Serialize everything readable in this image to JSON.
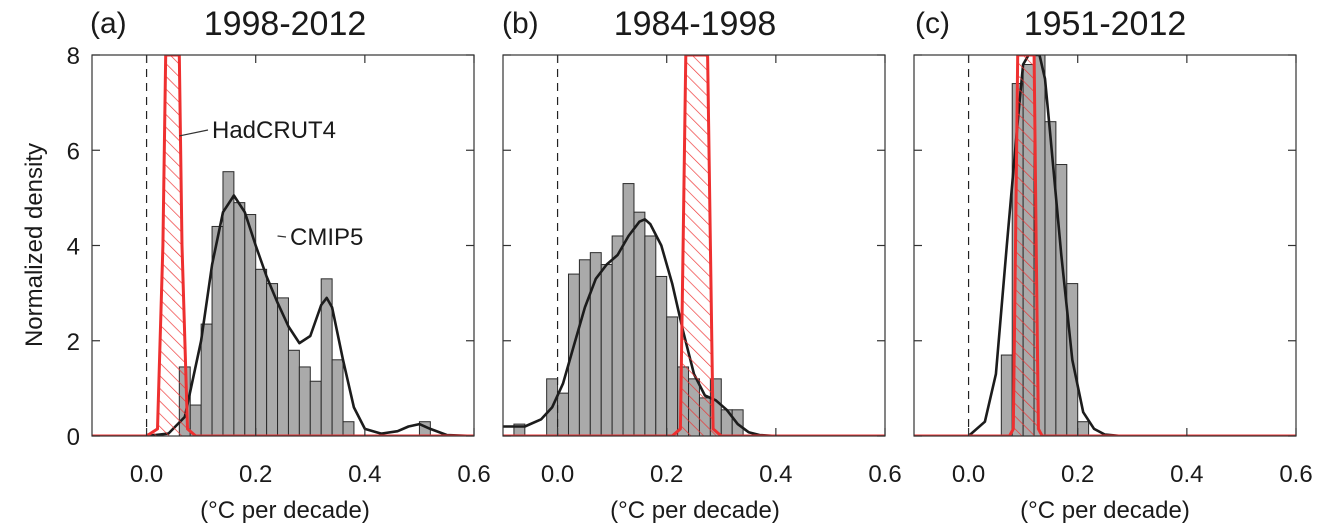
{
  "figure": {
    "ylabel": "Normalized density",
    "accent_colors": {
      "observations": "#ee3030",
      "model_curve": "#1c1c1c",
      "histogram_fill": "#aaaaaa",
      "zero_line": "#222222"
    }
  },
  "chart_data": [
    {
      "type": "bar",
      "panel_letter": "(a)",
      "title": "1998-2012",
      "xlabel": "(°C per decade)",
      "ylabel": "Normalized density",
      "xlim": [
        -0.1,
        0.6
      ],
      "ylim": [
        0,
        8
      ],
      "xticks": [
        "0.0",
        "0.2",
        "0.4",
        "0.6"
      ],
      "yticks": [
        "0",
        "2",
        "4",
        "6",
        "8"
      ],
      "zero_line": 0.0,
      "bin_width": 0.02,
      "annotations": [
        {
          "text": "HadCRUT4",
          "series": "HadCRUT4",
          "at": [
            0.06,
            6.3
          ]
        },
        {
          "text": "CMIP5",
          "series": "CMIP5",
          "at": [
            0.24,
            4.2
          ]
        }
      ],
      "histogram": {
        "name": "CMIP5",
        "bins": [
          {
            "x0": 0.06,
            "h": 1.45
          },
          {
            "x0": 0.08,
            "h": 0.65
          },
          {
            "x0": 0.1,
            "h": 2.35
          },
          {
            "x0": 0.12,
            "h": 4.4
          },
          {
            "x0": 0.14,
            "h": 5.55
          },
          {
            "x0": 0.16,
            "h": 4.9
          },
          {
            "x0": 0.18,
            "h": 4.65
          },
          {
            "x0": 0.2,
            "h": 3.5
          },
          {
            "x0": 0.22,
            "h": 3.2
          },
          {
            "x0": 0.24,
            "h": 2.9
          },
          {
            "x0": 0.26,
            "h": 1.8
          },
          {
            "x0": 0.28,
            "h": 1.45
          },
          {
            "x0": 0.3,
            "h": 1.15
          },
          {
            "x0": 0.32,
            "h": 3.3
          },
          {
            "x0": 0.34,
            "h": 1.6
          },
          {
            "x0": 0.36,
            "h": 0.3
          },
          {
            "x0": 0.5,
            "h": 0.3
          }
        ]
      },
      "series": [
        {
          "name": "CMIP5",
          "x": [
            -0.1,
            0.0,
            0.04,
            0.07,
            0.1,
            0.12,
            0.14,
            0.16,
            0.18,
            0.2,
            0.22,
            0.24,
            0.26,
            0.28,
            0.3,
            0.32,
            0.33,
            0.34,
            0.36,
            0.38,
            0.4,
            0.43,
            0.46,
            0.48,
            0.5,
            0.52,
            0.55,
            0.6
          ],
          "y": [
            0.0,
            0.0,
            0.05,
            0.4,
            2.0,
            3.6,
            4.7,
            5.05,
            4.7,
            4.0,
            3.35,
            2.8,
            2.3,
            1.95,
            2.1,
            2.75,
            2.9,
            2.7,
            1.6,
            0.6,
            0.15,
            0.05,
            0.1,
            0.2,
            0.25,
            0.15,
            0.02,
            0.0
          ]
        },
        {
          "name": "HadCRUT4",
          "style": "band",
          "x": [
            -0.1,
            0.0,
            0.02,
            0.03,
            0.035,
            0.06,
            0.065,
            0.075,
            0.09,
            0.6
          ],
          "y": [
            0.0,
            0.0,
            0.15,
            4.0,
            8.0,
            8.0,
            4.0,
            0.15,
            0.0,
            0.0
          ]
        }
      ]
    },
    {
      "type": "bar",
      "panel_letter": "(b)",
      "title": "1984-1998",
      "xlabel": "(°C per decade)",
      "xlim": [
        -0.1,
        0.6
      ],
      "ylim": [
        0,
        8
      ],
      "xticks": [
        "0.0",
        "0.2",
        "0.4",
        "0.6"
      ],
      "zero_line": 0.0,
      "bin_width": 0.02,
      "histogram": {
        "name": "CMIP5",
        "bins": [
          {
            "x0": -0.08,
            "h": 0.25
          },
          {
            "x0": -0.02,
            "h": 1.2
          },
          {
            "x0": 0.0,
            "h": 0.9
          },
          {
            "x0": 0.02,
            "h": 3.4
          },
          {
            "x0": 0.04,
            "h": 3.7
          },
          {
            "x0": 0.06,
            "h": 3.85
          },
          {
            "x0": 0.08,
            "h": 3.6
          },
          {
            "x0": 0.1,
            "h": 4.2
          },
          {
            "x0": 0.12,
            "h": 5.3
          },
          {
            "x0": 0.14,
            "h": 4.7
          },
          {
            "x0": 0.16,
            "h": 4.2
          },
          {
            "x0": 0.18,
            "h": 3.35
          },
          {
            "x0": 0.2,
            "h": 2.5
          },
          {
            "x0": 0.22,
            "h": 1.45
          },
          {
            "x0": 0.24,
            "h": 1.2
          },
          {
            "x0": 0.26,
            "h": 0.8
          },
          {
            "x0": 0.28,
            "h": 1.2
          },
          {
            "x0": 0.3,
            "h": 0.55
          },
          {
            "x0": 0.32,
            "h": 0.55
          }
        ]
      },
      "series": [
        {
          "name": "CMIP5",
          "x": [
            -0.1,
            -0.06,
            -0.03,
            -0.01,
            0.01,
            0.03,
            0.05,
            0.07,
            0.09,
            0.11,
            0.13,
            0.15,
            0.16,
            0.17,
            0.19,
            0.21,
            0.23,
            0.25,
            0.27,
            0.29,
            0.31,
            0.33,
            0.35,
            0.37,
            0.4,
            0.6
          ],
          "y": [
            0.2,
            0.2,
            0.35,
            0.6,
            1.1,
            1.9,
            2.7,
            3.3,
            3.6,
            3.8,
            4.2,
            4.5,
            4.55,
            4.45,
            4.0,
            3.2,
            2.2,
            1.3,
            0.85,
            0.75,
            0.55,
            0.25,
            0.08,
            0.02,
            0.0,
            0.0
          ]
        },
        {
          "name": "HadCRUT4",
          "style": "band",
          "x": [
            -0.1,
            0.21,
            0.225,
            0.23,
            0.235,
            0.275,
            0.28,
            0.285,
            0.3,
            0.6
          ],
          "y": [
            0.0,
            0.0,
            0.15,
            4.0,
            8.0,
            8.0,
            4.0,
            0.15,
            0.0,
            0.0
          ]
        }
      ]
    },
    {
      "type": "bar",
      "panel_letter": "(c)",
      "title": "1951-2012",
      "xlabel": "(°C per decade)",
      "xlim": [
        -0.1,
        0.6
      ],
      "ylim": [
        0,
        8
      ],
      "xticks": [
        "0.0",
        "0.2",
        "0.4",
        "0.6"
      ],
      "zero_line": 0.0,
      "bin_width": 0.02,
      "histogram": {
        "name": "CMIP5",
        "bins": [
          {
            "x0": 0.06,
            "h": 1.7
          },
          {
            "x0": 0.08,
            "h": 7.4
          },
          {
            "x0": 0.1,
            "h": 7.8
          },
          {
            "x0": 0.12,
            "h": 8.0
          },
          {
            "x0": 0.14,
            "h": 6.6
          },
          {
            "x0": 0.16,
            "h": 5.7
          },
          {
            "x0": 0.18,
            "h": 3.2
          },
          {
            "x0": 0.2,
            "h": 0.3
          }
        ]
      },
      "series": [
        {
          "name": "CMIP5",
          "x": [
            -0.1,
            0.0,
            0.03,
            0.05,
            0.07,
            0.09,
            0.1,
            0.11,
            0.12,
            0.13,
            0.14,
            0.15,
            0.17,
            0.19,
            0.21,
            0.23,
            0.25,
            0.28,
            0.6
          ],
          "y": [
            0.0,
            0.0,
            0.3,
            1.3,
            4.0,
            6.6,
            7.8,
            8.0,
            8.0,
            8.0,
            7.5,
            6.3,
            3.8,
            1.6,
            0.5,
            0.15,
            0.03,
            0.0,
            0.0
          ]
        },
        {
          "name": "HadCRUT4",
          "style": "band",
          "x": [
            -0.1,
            0.075,
            0.082,
            0.086,
            0.09,
            0.12,
            0.124,
            0.128,
            0.135,
            0.6
          ],
          "y": [
            0.0,
            0.0,
            0.15,
            4.0,
            8.0,
            8.0,
            4.0,
            0.15,
            0.0,
            0.0
          ]
        }
      ]
    }
  ]
}
